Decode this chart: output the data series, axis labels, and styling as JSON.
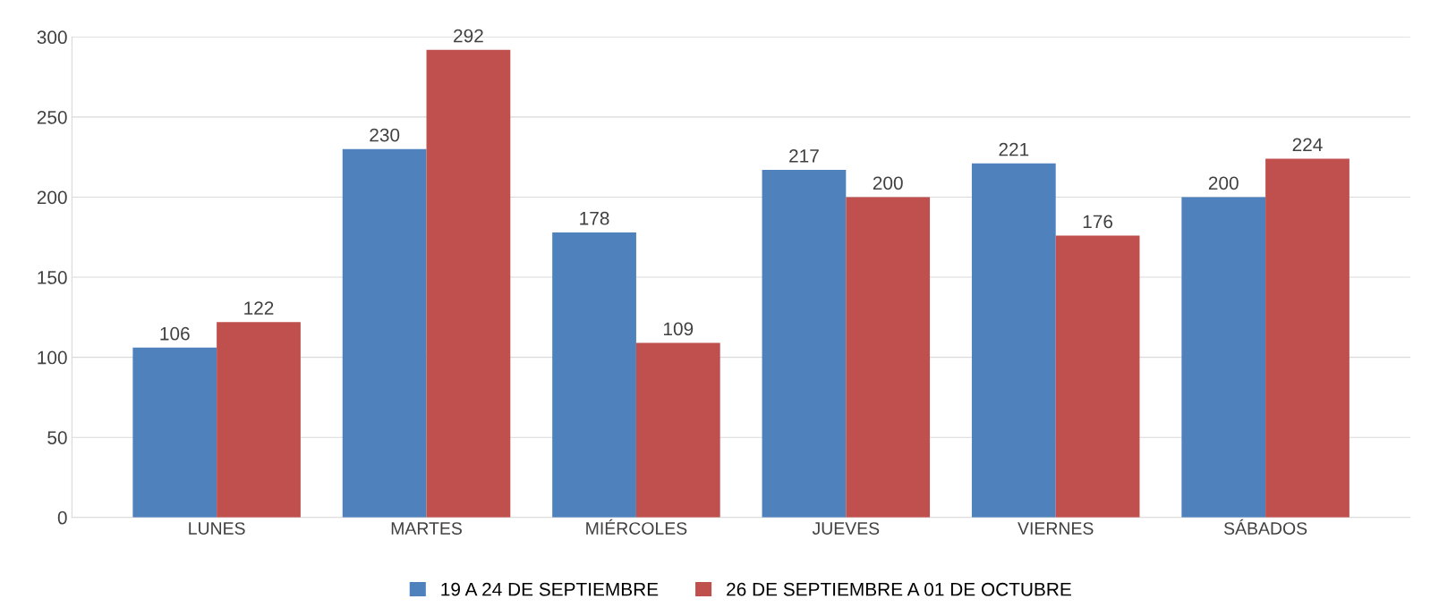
{
  "chart_data": {
    "type": "bar",
    "categories": [
      "LUNES",
      "MARTES",
      "MIÉRCOLES",
      "JUEVES",
      "VIERNES",
      "SÁBADOS"
    ],
    "series": [
      {
        "name": "19 A 24 DE SEPTIEMBRE",
        "color": "#4f81bd",
        "values": [
          106,
          230,
          178,
          217,
          221,
          200
        ]
      },
      {
        "name": "26 DE SEPTIEMBRE A 01 DE OCTUBRE",
        "color": "#c0504d",
        "values": [
          122,
          292,
          109,
          200,
          176,
          224
        ]
      }
    ],
    "ylim": [
      0,
      300
    ],
    "yticks": [
      0,
      50,
      100,
      150,
      200,
      250,
      300
    ],
    "grid": "y",
    "legend": "bottom",
    "data_labels": true
  }
}
